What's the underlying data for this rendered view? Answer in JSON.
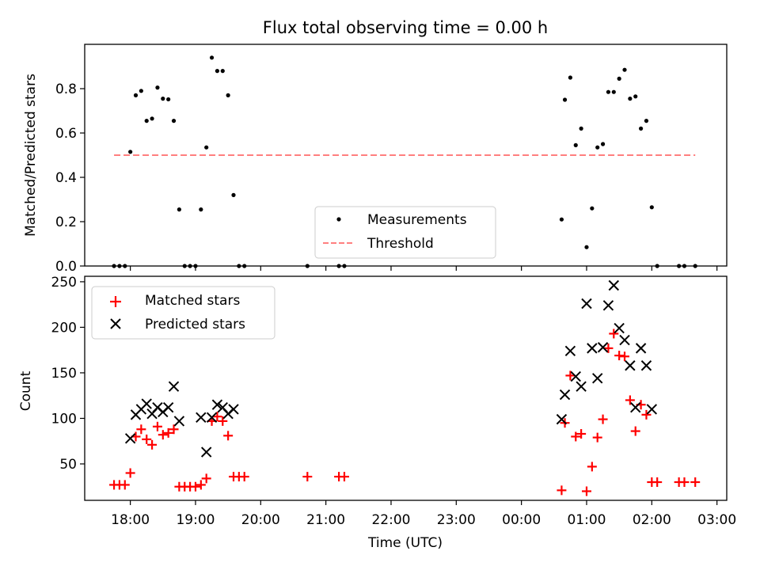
{
  "figure": {
    "title": "Flux total observing time = 0.00 h"
  },
  "chart_data": [
    {
      "type": "scatter",
      "panel": "top",
      "ylabel": "Matched/Predicted stars",
      "xlabel": "",
      "xlim": [
        "17:18",
        "03:09"
      ],
      "ylim": [
        0,
        1.0
      ],
      "yticks": [
        "0.0",
        "0.2",
        "0.4",
        "0.6",
        "0.8"
      ],
      "grid": false,
      "legend": "lower-center",
      "series": [
        {
          "name": "Measurements",
          "marker": "dot",
          "color": "#000000",
          "points": [
            [
              "17:45",
              0.0
            ],
            [
              "17:50",
              0.0
            ],
            [
              "17:55",
              0.0
            ],
            [
              "18:00",
              0.515
            ],
            [
              "18:05",
              0.77
            ],
            [
              "18:10",
              0.79
            ],
            [
              "18:15",
              0.655
            ],
            [
              "18:20",
              0.665
            ],
            [
              "18:25",
              0.805
            ],
            [
              "18:30",
              0.755
            ],
            [
              "18:35",
              0.752
            ],
            [
              "18:40",
              0.655
            ],
            [
              "18:45",
              0.255
            ],
            [
              "18:50",
              0.0
            ],
            [
              "18:55",
              0.0
            ],
            [
              "19:00",
              0.0
            ],
            [
              "19:05",
              0.255
            ],
            [
              "19:10",
              0.535
            ],
            [
              "19:15",
              0.94
            ],
            [
              "19:20",
              0.88
            ],
            [
              "19:25",
              0.88
            ],
            [
              "19:30",
              0.77
            ],
            [
              "19:35",
              0.32
            ],
            [
              "19:40",
              0.0
            ],
            [
              "19:45",
              0.0
            ],
            [
              "20:43",
              0.0
            ],
            [
              "21:12",
              0.0
            ],
            [
              "21:17",
              0.0
            ],
            [
              "00:37",
              0.21
            ],
            [
              "00:40",
              0.75
            ],
            [
              "00:45",
              0.85
            ],
            [
              "00:50",
              0.545
            ],
            [
              "00:55",
              0.62
            ],
            [
              "01:00",
              0.085
            ],
            [
              "01:05",
              0.26
            ],
            [
              "01:10",
              0.535
            ],
            [
              "01:15",
              0.55
            ],
            [
              "01:20",
              0.785
            ],
            [
              "01:25",
              0.785
            ],
            [
              "01:30",
              0.845
            ],
            [
              "01:35",
              0.885
            ],
            [
              "01:40",
              0.755
            ],
            [
              "01:45",
              0.765
            ],
            [
              "01:50",
              0.62
            ],
            [
              "01:55",
              0.655
            ],
            [
              "02:00",
              0.265
            ],
            [
              "02:05",
              0.0
            ],
            [
              "02:25",
              0.0
            ],
            [
              "02:30",
              0.0
            ],
            [
              "02:40",
              0.0
            ]
          ]
        },
        {
          "name": "Threshold",
          "style": "dashed-line",
          "color": "#ff7f7f",
          "x": [
            "17:45",
            "02:40"
          ],
          "values": [
            0.5,
            0.5
          ]
        }
      ]
    },
    {
      "type": "scatter",
      "panel": "bottom",
      "xlabel": "Time (UTC)",
      "ylabel": "Count",
      "xlim": [
        "17:18",
        "03:09"
      ],
      "ylim": [
        10,
        256
      ],
      "yticks": [
        "50",
        "100",
        "150",
        "200",
        "250"
      ],
      "xticks": [
        "18:00",
        "19:00",
        "20:00",
        "21:00",
        "22:00",
        "23:00",
        "00:00",
        "01:00",
        "02:00",
        "03:00"
      ],
      "grid": false,
      "legend": "upper-left",
      "series": [
        {
          "name": "Matched stars",
          "marker": "plus",
          "color": "#ff0000",
          "points": [
            [
              "17:45",
              27
            ],
            [
              "17:50",
              27
            ],
            [
              "17:55",
              27
            ],
            [
              "18:00",
              40
            ],
            [
              "18:05",
              80
            ],
            [
              "18:10",
              88
            ],
            [
              "18:15",
              77
            ],
            [
              "18:20",
              71
            ],
            [
              "18:25",
              91
            ],
            [
              "18:30",
              82
            ],
            [
              "18:35",
              84
            ],
            [
              "18:40",
              88
            ],
            [
              "18:45",
              25
            ],
            [
              "18:50",
              25
            ],
            [
              "18:55",
              25
            ],
            [
              "19:00",
              25
            ],
            [
              "19:05",
              27
            ],
            [
              "19:10",
              34
            ],
            [
              "19:15",
              97
            ],
            [
              "19:20",
              102
            ],
            [
              "19:25",
              97
            ],
            [
              "19:30",
              81
            ],
            [
              "19:35",
              36
            ],
            [
              "19:40",
              36
            ],
            [
              "19:45",
              36
            ],
            [
              "20:43",
              36
            ],
            [
              "21:12",
              36
            ],
            [
              "21:17",
              36
            ],
            [
              "00:37",
              21
            ],
            [
              "00:40",
              95
            ],
            [
              "00:45",
              147
            ],
            [
              "00:50",
              80
            ],
            [
              "00:55",
              83
            ],
            [
              "01:00",
              20
            ],
            [
              "01:05",
              47
            ],
            [
              "01:10",
              79
            ],
            [
              "01:15",
              99
            ],
            [
              "01:20",
              177
            ],
            [
              "01:25",
              193
            ],
            [
              "01:30",
              169
            ],
            [
              "01:35",
              168
            ],
            [
              "01:40",
              120
            ],
            [
              "01:45",
              86
            ],
            [
              "01:50",
              115
            ],
            [
              "01:55",
              104
            ],
            [
              "02:00",
              30
            ],
            [
              "02:05",
              30
            ],
            [
              "02:25",
              30
            ],
            [
              "02:30",
              30
            ],
            [
              "02:40",
              30
            ]
          ]
        },
        {
          "name": "Predicted stars",
          "marker": "x",
          "color": "#000000",
          "points": [
            [
              "18:00",
              78
            ],
            [
              "18:05",
              104
            ],
            [
              "18:10",
              110
            ],
            [
              "18:15",
              116
            ],
            [
              "18:20",
              105
            ],
            [
              "18:25",
              112
            ],
            [
              "18:30",
              107
            ],
            [
              "18:35",
              112
            ],
            [
              "18:40",
              135
            ],
            [
              "18:45",
              97
            ],
            [
              "19:05",
              101
            ],
            [
              "19:10",
              63
            ],
            [
              "19:15",
              101
            ],
            [
              "19:20",
              115
            ],
            [
              "19:25",
              112
            ],
            [
              "19:30",
              105
            ],
            [
              "19:35",
              110
            ],
            [
              "00:37",
              99
            ],
            [
              "00:40",
              126
            ],
            [
              "00:45",
              174
            ],
            [
              "00:50",
              146
            ],
            [
              "00:55",
              135
            ],
            [
              "01:00",
              226
            ],
            [
              "01:05",
              177
            ],
            [
              "01:10",
              144
            ],
            [
              "01:15",
              178
            ],
            [
              "01:20",
              224
            ],
            [
              "01:25",
              246
            ],
            [
              "01:30",
              199
            ],
            [
              "01:35",
              186
            ],
            [
              "01:40",
              158
            ],
            [
              "01:45",
              112
            ],
            [
              "01:50",
              177
            ],
            [
              "01:55",
              158
            ],
            [
              "02:00",
              110
            ]
          ]
        }
      ]
    }
  ]
}
